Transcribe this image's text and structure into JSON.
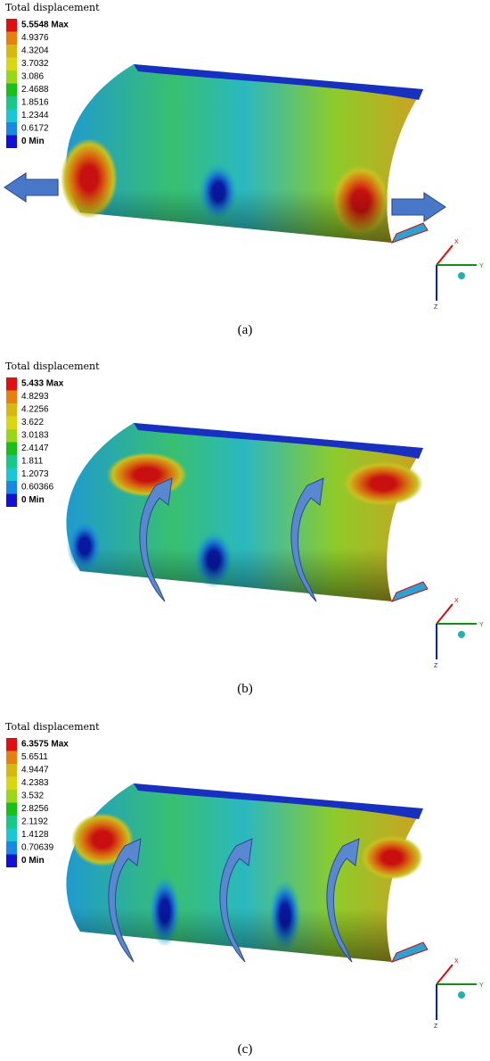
{
  "panels": [
    {
      "title": "Total displacement",
      "legend": [
        "5.5548 Max",
        "4.9376",
        "4.3204",
        "3.7032",
        "3.086",
        "2.4688",
        "1.8516",
        "1.2344",
        "0.6172",
        "0 Min"
      ],
      "axes": [
        "X",
        "Y",
        "Z"
      ],
      "caption": "(a)"
    },
    {
      "title": "Total displacement",
      "legend": [
        "5.433 Max",
        "4.8293",
        "4.2256",
        "3.622",
        "3.0183",
        "2.4147",
        "1.811",
        "1.2073",
        "0.60366",
        "0 Min"
      ],
      "axes": [
        "X",
        "Y",
        "Z"
      ],
      "caption": "(b)"
    },
    {
      "title": "Total displacement",
      "legend": [
        "6.3575 Max",
        "5.6511",
        "4.9447",
        "4.2383",
        "3.532",
        "2.8256",
        "2.1192",
        "1.4128",
        "0.70639",
        "0 Min"
      ],
      "axes": [
        "X",
        "Y",
        "Z"
      ],
      "caption": "(c)"
    }
  ]
}
